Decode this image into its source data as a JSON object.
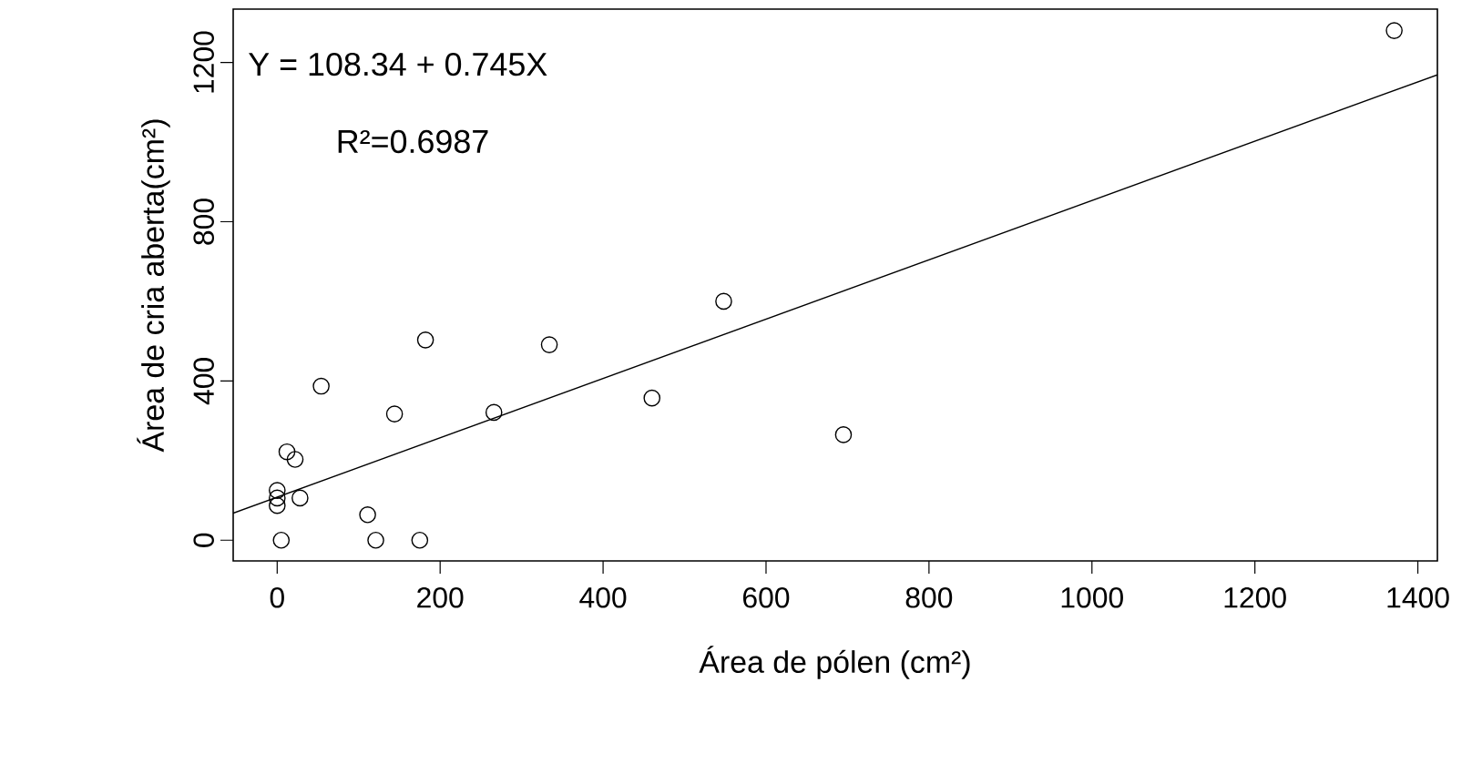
{
  "chart_data": {
    "type": "scatter",
    "xlabel": "Área de pólen (cm²)",
    "ylabel": "Área de cria aberta(cm²)",
    "annotations": [
      "Y = 108.34 + 0.745X",
      "R²=0.6987"
    ],
    "xlim": [
      -54,
      1424
    ],
    "ylim": [
      -52,
      1334
    ],
    "xticks": [
      0,
      200,
      400,
      600,
      800,
      1000,
      1200,
      1400
    ],
    "yticks": [
      0,
      400,
      800,
      1200
    ],
    "grid": false,
    "series": [
      {
        "marker": "circle",
        "color": "#000000",
        "x": [
          1371,
          548,
          334,
          182,
          54,
          144,
          266,
          460,
          695,
          12,
          22,
          0,
          0,
          0,
          28,
          111,
          5,
          121,
          175
        ],
        "values": [
          1280,
          600,
          491,
          503,
          387,
          317,
          321,
          357,
          265,
          222,
          203,
          125,
          106,
          87,
          106,
          64,
          0,
          0,
          0
        ]
      },
      {
        "type": "line",
        "color": "#000000",
        "line_style": "solid",
        "x": [
          -54,
          1424
        ],
        "values": [
          68,
          1169
        ]
      }
    ]
  }
}
